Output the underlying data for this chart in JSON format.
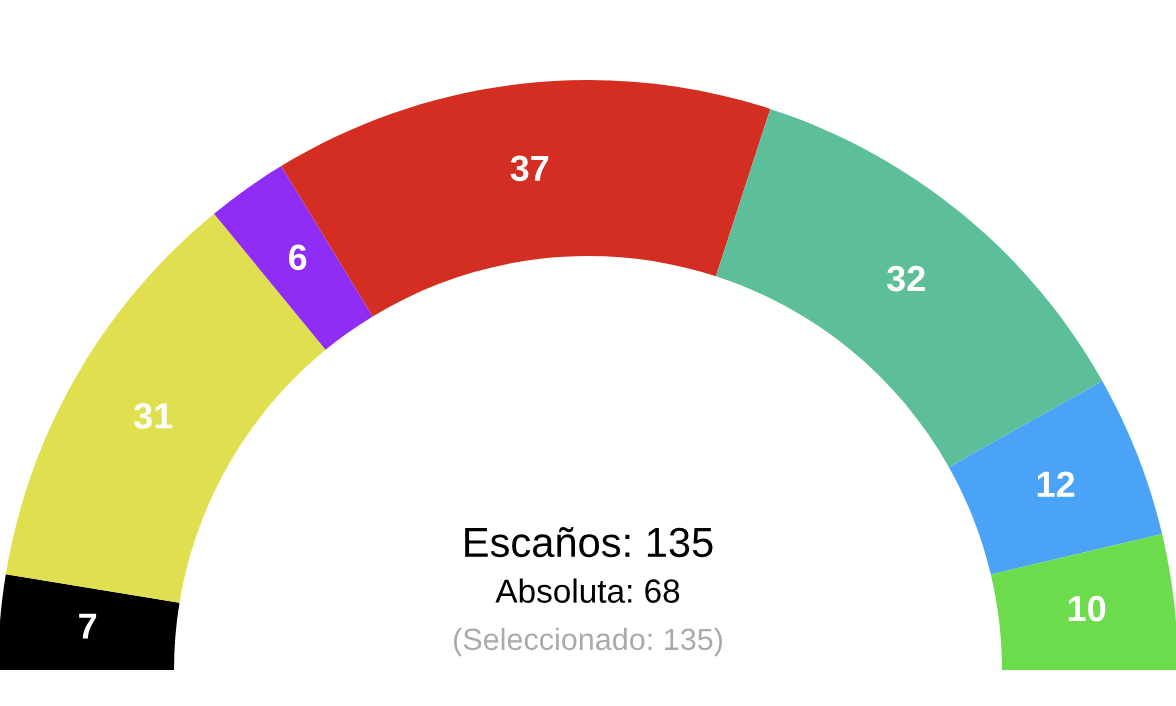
{
  "chart_data": {
    "type": "donut",
    "categories": [
      null,
      null,
      null,
      null,
      null,
      null,
      null
    ],
    "values": [
      7,
      31,
      6,
      37,
      32,
      12,
      10
    ],
    "colors": [
      "#000000",
      "#dfdf50",
      "#8f2cf5",
      "#d42e22",
      "#5dbf9a",
      "#4aa3f7",
      "#6cdb4c"
    ],
    "data_labels": true,
    "annotations": [
      "Escaños: 135",
      "Absoluta: 68",
      "(Seleccionado: 135)"
    ]
  }
}
